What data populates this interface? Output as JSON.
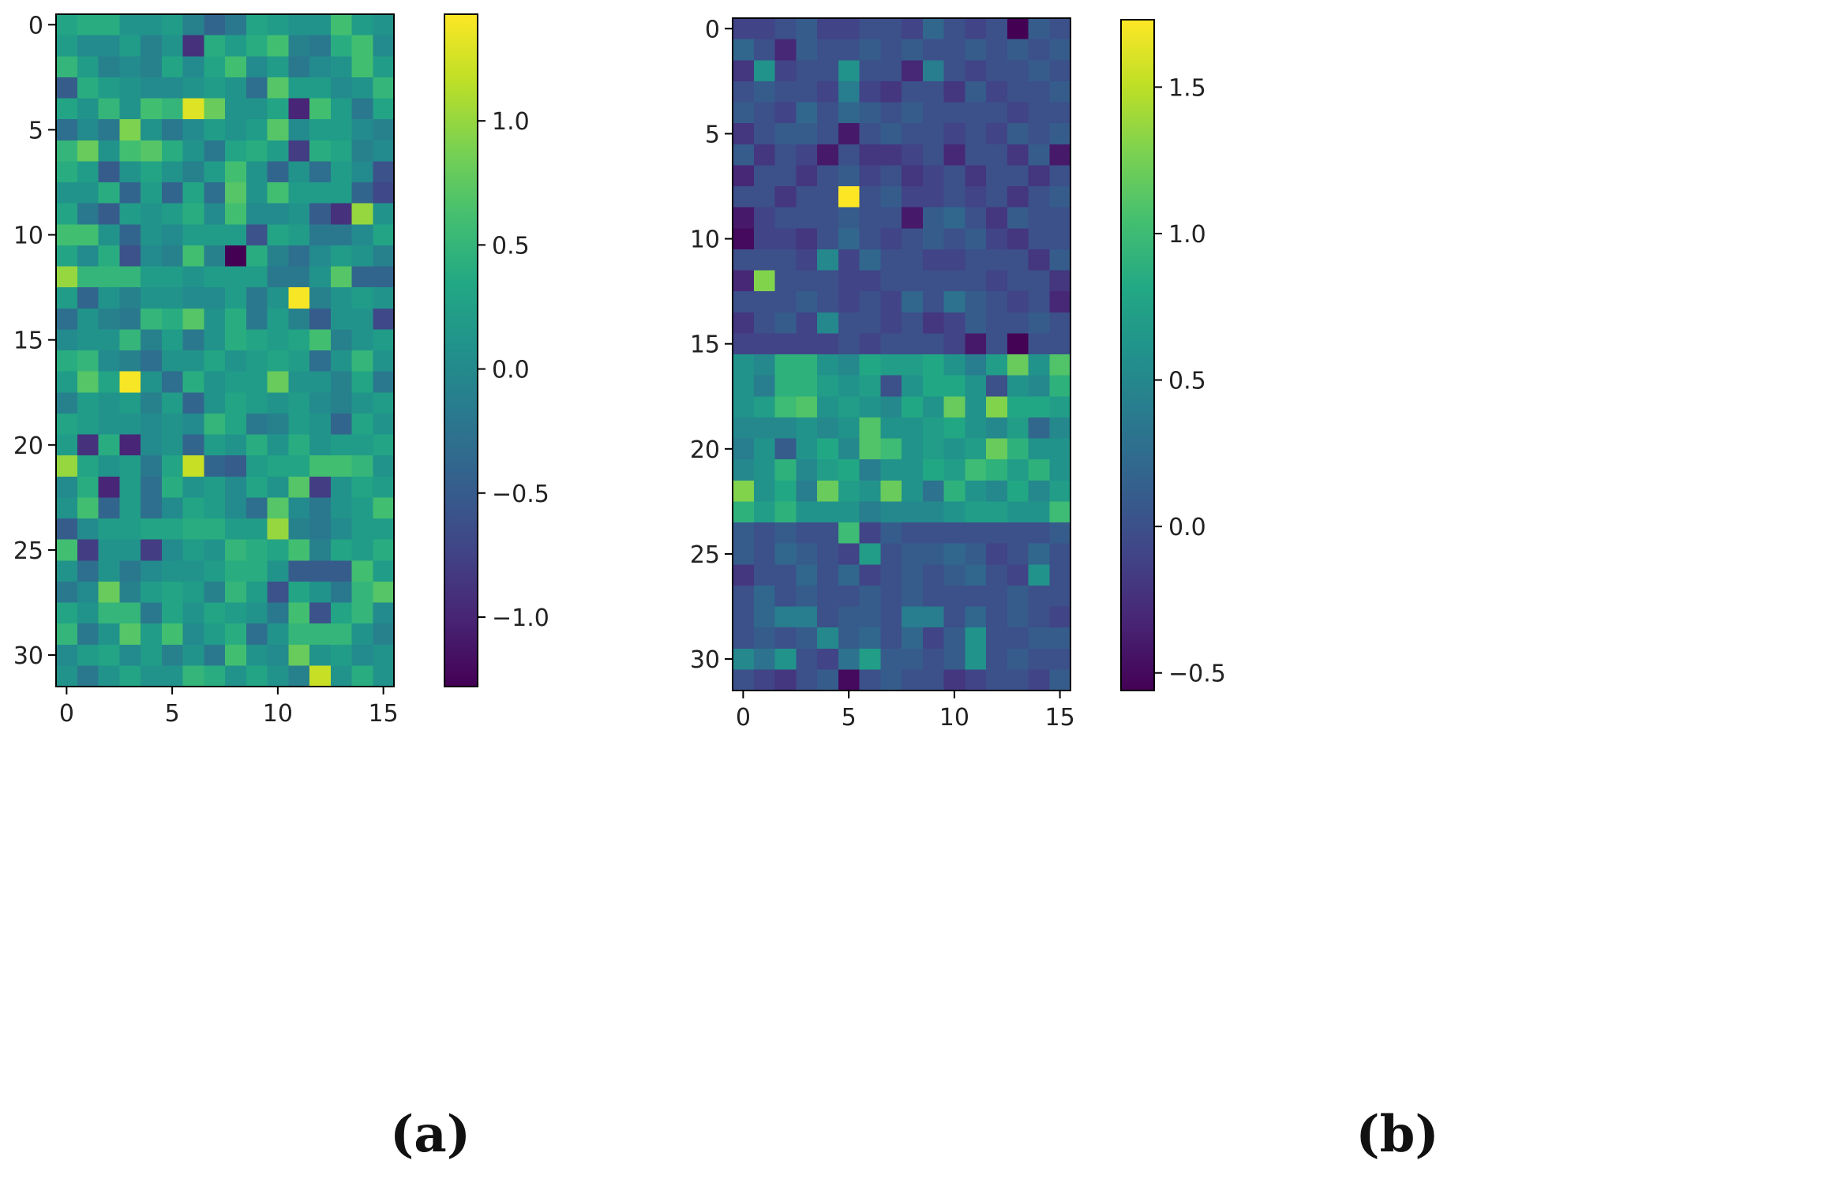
{
  "chart_data": [
    {
      "type": "heatmap",
      "panel": "a",
      "panel_label": "(a)",
      "rows": 32,
      "cols": 16,
      "colormap": "viridis",
      "vmin": -1.28,
      "vmax": 1.43,
      "xticks": [
        0,
        5,
        10,
        15
      ],
      "xtick_labels": [
        "0",
        "5",
        "10",
        "15"
      ],
      "yticks": [
        0,
        5,
        10,
        15,
        20,
        25,
        30
      ],
      "ytick_labels": [
        "0",
        "5",
        "10",
        "15",
        "20",
        "25",
        "30"
      ],
      "colorbar_ticks": [
        -1.0,
        -0.5,
        0.0,
        0.5,
        1.0
      ],
      "colorbar_tick_labels": [
        "−1.0",
        "−0.5",
        "0.0",
        "0.5",
        "1.0"
      ],
      "values": [
        [
          0.3,
          0.4,
          0.4,
          0.1,
          0.1,
          0.2,
          -0.1,
          -0.4,
          -0.2,
          0.3,
          0.2,
          0.1,
          0.1,
          0.6,
          0.2,
          0.1
        ],
        [
          0.2,
          0.0,
          0.0,
          0.2,
          -0.1,
          0.1,
          -0.9,
          0.4,
          0.2,
          0.4,
          0.6,
          -0.1,
          -0.2,
          0.4,
          0.6,
          0.0
        ],
        [
          0.5,
          0.2,
          -0.1,
          0.0,
          -0.1,
          0.3,
          0.0,
          0.3,
          0.6,
          0.0,
          0.2,
          -0.2,
          0.0,
          0.1,
          0.6,
          0.2
        ],
        [
          -0.5,
          0.4,
          0.2,
          0.1,
          0.0,
          0.0,
          0.1,
          0.2,
          0.1,
          -0.3,
          0.7,
          0.2,
          0.2,
          0.0,
          0.1,
          0.5
        ],
        [
          0.3,
          0.1,
          0.5,
          0.1,
          0.6,
          0.5,
          1.3,
          0.8,
          0.1,
          0.1,
          0.3,
          -1.0,
          0.6,
          0.2,
          -0.2,
          0.3
        ],
        [
          -0.3,
          0.0,
          -0.2,
          0.9,
          0.1,
          -0.2,
          0.0,
          0.2,
          0.1,
          0.2,
          0.7,
          0.0,
          0.2,
          0.2,
          0.0,
          -0.1
        ],
        [
          0.5,
          0.8,
          0.1,
          0.6,
          0.7,
          0.4,
          0.1,
          -0.2,
          0.3,
          0.4,
          0.2,
          -0.8,
          0.4,
          0.3,
          -0.1,
          0.0
        ],
        [
          0.4,
          0.2,
          -0.5,
          0.1,
          0.3,
          0.1,
          -0.1,
          0.2,
          0.6,
          0.1,
          -0.4,
          0.1,
          -0.3,
          0.2,
          0.0,
          -0.6
        ],
        [
          0.1,
          0.1,
          0.4,
          -0.4,
          0.2,
          -0.4,
          0.3,
          -0.3,
          0.7,
          0.1,
          0.6,
          0.2,
          0.2,
          0.2,
          -0.4,
          -0.7
        ],
        [
          0.3,
          -0.2,
          -0.5,
          0.2,
          0.1,
          0.2,
          0.4,
          0.0,
          0.6,
          0.0,
          0.0,
          0.1,
          -0.5,
          -0.9,
          1.0,
          0.1
        ],
        [
          0.6,
          0.6,
          0.1,
          -0.4,
          0.1,
          0.0,
          0.2,
          0.2,
          0.2,
          -0.6,
          0.3,
          0.2,
          -0.2,
          -0.2,
          0.0,
          0.3
        ],
        [
          0.3,
          0.0,
          0.4,
          -0.6,
          0.0,
          -0.1,
          0.6,
          -0.1,
          -1.3,
          0.4,
          -0.1,
          -0.3,
          0.0,
          0.2,
          0.1,
          -0.1
        ],
        [
          1.0,
          0.5,
          0.5,
          0.5,
          0.2,
          0.2,
          0.1,
          0.2,
          0.2,
          0.2,
          -0.2,
          -0.2,
          0.1,
          0.7,
          -0.4,
          -0.4
        ],
        [
          0.2,
          -0.4,
          0.1,
          -0.1,
          0.1,
          0.1,
          0.0,
          0.0,
          0.2,
          -0.2,
          0.1,
          1.4,
          -0.1,
          0.1,
          0.2,
          0.1
        ],
        [
          -0.3,
          0.1,
          -0.1,
          -0.2,
          0.5,
          0.4,
          0.7,
          0.1,
          0.4,
          -0.2,
          0.2,
          -0.1,
          -0.5,
          0.1,
          0.1,
          -0.7
        ],
        [
          0.0,
          0.1,
          0.1,
          0.5,
          -0.1,
          0.2,
          -0.2,
          0.1,
          0.4,
          0.3,
          0.2,
          0.3,
          0.6,
          -0.1,
          0.1,
          0.2
        ],
        [
          0.4,
          0.5,
          0.0,
          -0.1,
          -0.3,
          0.1,
          0.1,
          0.3,
          0.1,
          0.2,
          0.3,
          0.2,
          -0.3,
          0.1,
          0.5,
          0.1
        ],
        [
          0.2,
          0.7,
          0.3,
          1.4,
          0.1,
          -0.3,
          0.4,
          0.1,
          0.2,
          0.2,
          0.8,
          0.1,
          0.1,
          -0.1,
          0.3,
          -0.2
        ],
        [
          -0.1,
          0.2,
          0.1,
          0.2,
          -0.1,
          0.2,
          -0.4,
          0.1,
          0.3,
          0.2,
          0.1,
          0.2,
          0.0,
          -0.1,
          0.1,
          0.2
        ],
        [
          0.3,
          0.2,
          0.1,
          0.1,
          0.0,
          0.1,
          0.0,
          0.5,
          0.3,
          -0.2,
          -0.1,
          0.2,
          0.1,
          -0.4,
          0.3,
          0.1
        ],
        [
          0.2,
          -0.9,
          0.4,
          -1.0,
          0.0,
          0.1,
          -0.4,
          0.2,
          0.1,
          0.4,
          0.1,
          0.4,
          0.1,
          0.2,
          0.2,
          0.3
        ],
        [
          1.0,
          0.3,
          0.1,
          0.2,
          -0.2,
          0.3,
          1.2,
          -0.4,
          -0.5,
          0.2,
          0.3,
          0.3,
          0.6,
          0.6,
          0.5,
          0.1
        ],
        [
          0.0,
          0.4,
          -1.0,
          0.2,
          -0.3,
          0.4,
          0.1,
          0.2,
          0.0,
          0.3,
          0.1,
          0.7,
          -0.8,
          0.1,
          0.3,
          0.2
        ],
        [
          0.1,
          0.6,
          -0.4,
          0.2,
          -0.3,
          0.0,
          0.3,
          0.2,
          0.0,
          -0.3,
          0.7,
          0.0,
          -0.2,
          0.1,
          0.2,
          0.6
        ],
        [
          -0.5,
          0.0,
          0.2,
          0.2,
          0.3,
          0.3,
          0.4,
          0.4,
          0.2,
          0.2,
          1.0,
          -0.1,
          -0.2,
          0.0,
          0.2,
          0.2
        ],
        [
          0.6,
          -0.8,
          0.1,
          0.1,
          -0.8,
          0.0,
          0.2,
          0.1,
          0.5,
          0.4,
          0.3,
          0.6,
          -0.1,
          0.3,
          0.2,
          0.4
        ],
        [
          0.1,
          -0.3,
          0.1,
          -0.2,
          0.0,
          0.1,
          0.1,
          0.2,
          0.4,
          0.4,
          0.1,
          -0.5,
          -0.5,
          -0.5,
          0.6,
          0.2
        ],
        [
          -0.2,
          0.0,
          0.8,
          -0.1,
          0.2,
          0.3,
          0.2,
          -0.1,
          0.5,
          0.2,
          -0.6,
          0.3,
          0.1,
          -0.2,
          0.5,
          0.7
        ],
        [
          0.3,
          0.1,
          0.5,
          0.5,
          -0.2,
          0.3,
          0.1,
          0.3,
          0.2,
          0.1,
          -0.2,
          0.6,
          -0.6,
          0.3,
          0.5,
          0.0
        ],
        [
          0.5,
          -0.2,
          0.1,
          0.7,
          0.2,
          0.6,
          0.0,
          0.2,
          0.4,
          -0.3,
          0.1,
          0.5,
          0.5,
          0.5,
          0.1,
          -0.1
        ],
        [
          0.0,
          0.2,
          0.3,
          0.0,
          0.2,
          -0.1,
          0.1,
          -0.2,
          0.6,
          0.1,
          0.0,
          0.8,
          0.1,
          0.2,
          0.0,
          0.1
        ],
        [
          0.1,
          -0.2,
          0.1,
          0.3,
          0.1,
          0.1,
          0.5,
          0.4,
          0.1,
          0.3,
          0.1,
          -0.1,
          1.2,
          0.1,
          0.4,
          0.1
        ]
      ]
    },
    {
      "type": "heatmap",
      "panel": "b",
      "panel_label": "(b)",
      "rows": 32,
      "cols": 16,
      "colormap": "viridis",
      "vmin": -0.56,
      "vmax": 1.73,
      "xticks": [
        0,
        5,
        10,
        15
      ],
      "xtick_labels": [
        "0",
        "5",
        "10",
        "15"
      ],
      "yticks": [
        0,
        5,
        10,
        15,
        20,
        25,
        30
      ],
      "ytick_labels": [
        "0",
        "5",
        "10",
        "15",
        "20",
        "25",
        "30"
      ],
      "colorbar_ticks": [
        -0.5,
        0.0,
        0.5,
        1.0,
        1.5
      ],
      "colorbar_tick_labels": [
        "−0.5",
        "0.0",
        "0.5",
        "1.0",
        "1.5"
      ],
      "values": [
        [
          -0.1,
          -0.1,
          0.0,
          0.1,
          -0.1,
          -0.1,
          0.0,
          0.0,
          -0.1,
          0.2,
          0.0,
          -0.1,
          0.0,
          -0.56,
          0.1,
          0.0
        ],
        [
          0.2,
          0.0,
          -0.3,
          0.1,
          0.0,
          0.0,
          0.1,
          0.0,
          0.1,
          0.0,
          0.0,
          0.1,
          0.0,
          0.1,
          0.0,
          0.1
        ],
        [
          -0.2,
          0.6,
          -0.1,
          0.0,
          0.0,
          0.6,
          0.0,
          0.0,
          -0.3,
          0.4,
          0.0,
          -0.1,
          0.0,
          0.0,
          0.1,
          0.0
        ],
        [
          0.0,
          0.1,
          0.0,
          0.0,
          -0.1,
          0.4,
          -0.1,
          -0.2,
          0.0,
          0.0,
          -0.2,
          0.1,
          -0.1,
          0.0,
          0.0,
          0.1
        ],
        [
          0.1,
          0.0,
          -0.1,
          0.2,
          0.0,
          0.2,
          0.1,
          0.0,
          0.1,
          0.0,
          0.0,
          0.0,
          0.0,
          -0.1,
          0.0,
          0.0
        ],
        [
          -0.2,
          0.0,
          0.1,
          0.1,
          0.0,
          -0.4,
          0.0,
          0.1,
          0.0,
          0.0,
          -0.1,
          0.0,
          -0.1,
          0.1,
          0.0,
          0.1
        ],
        [
          0.1,
          -0.2,
          0.0,
          -0.1,
          -0.4,
          0.0,
          -0.2,
          -0.2,
          -0.1,
          0.0,
          -0.3,
          0.0,
          0.0,
          -0.2,
          0.1,
          -0.4
        ],
        [
          -0.3,
          0.0,
          0.0,
          -0.2,
          0.0,
          0.1,
          -0.1,
          0.0,
          -0.2,
          -0.1,
          0.0,
          -0.2,
          0.0,
          0.0,
          -0.2,
          0.0
        ],
        [
          0.0,
          0.0,
          -0.2,
          0.0,
          0.0,
          1.73,
          0.0,
          0.1,
          -0.1,
          -0.1,
          0.0,
          -0.1,
          0.0,
          -0.2,
          0.0,
          0.1
        ],
        [
          -0.4,
          -0.1,
          0.0,
          0.0,
          0.0,
          0.1,
          0.0,
          0.0,
          -0.4,
          0.1,
          0.2,
          0.0,
          -0.2,
          0.1,
          0.0,
          0.0
        ],
        [
          -0.5,
          -0.1,
          -0.1,
          -0.2,
          0.0,
          0.2,
          0.0,
          -0.1,
          0.0,
          0.1,
          0.0,
          0.1,
          -0.1,
          -0.2,
          0.0,
          0.0
        ],
        [
          0.0,
          0.0,
          0.0,
          -0.1,
          0.5,
          -0.1,
          0.2,
          0.0,
          0.0,
          -0.1,
          -0.1,
          0.0,
          0.0,
          0.0,
          -0.2,
          0.1
        ],
        [
          -0.3,
          1.3,
          0.0,
          0.0,
          0.0,
          -0.1,
          -0.1,
          0.0,
          0.0,
          0.0,
          0.0,
          0.0,
          -0.1,
          0.0,
          0.0,
          -0.2
        ],
        [
          0.0,
          0.0,
          0.0,
          0.1,
          0.0,
          -0.1,
          0.0,
          -0.1,
          0.2,
          0.0,
          0.3,
          0.1,
          0.0,
          -0.1,
          0.0,
          -0.3
        ],
        [
          -0.2,
          0.0,
          0.1,
          -0.1,
          0.5,
          0.0,
          0.0,
          -0.1,
          0.0,
          -0.2,
          -0.1,
          0.1,
          0.0,
          0.0,
          0.1,
          0.0
        ],
        [
          -0.1,
          -0.1,
          -0.1,
          -0.1,
          -0.1,
          0.0,
          -0.1,
          0.0,
          0.0,
          0.0,
          -0.1,
          -0.4,
          0.0,
          -0.55,
          0.0,
          0.0
        ],
        [
          0.6,
          0.5,
          0.9,
          0.9,
          0.6,
          0.5,
          0.8,
          0.7,
          0.7,
          0.8,
          0.6,
          0.4,
          0.7,
          1.2,
          0.6,
          1.1
        ],
        [
          0.6,
          0.4,
          0.9,
          0.9,
          0.7,
          0.6,
          0.7,
          0.0,
          0.6,
          0.8,
          0.8,
          0.6,
          0.0,
          0.6,
          0.5,
          0.9
        ],
        [
          0.6,
          0.7,
          1.0,
          1.1,
          0.6,
          0.7,
          0.6,
          0.5,
          0.8,
          0.6,
          1.2,
          0.6,
          1.3,
          0.8,
          0.8,
          0.7
        ],
        [
          0.5,
          0.5,
          0.5,
          0.6,
          0.5,
          0.6,
          1.1,
          0.6,
          0.6,
          0.7,
          0.8,
          0.6,
          0.5,
          0.7,
          0.2,
          0.5
        ],
        [
          0.4,
          0.6,
          0.1,
          0.6,
          0.8,
          0.5,
          1.1,
          1.0,
          0.6,
          0.7,
          0.6,
          0.7,
          1.2,
          0.9,
          0.6,
          0.6
        ],
        [
          0.5,
          0.6,
          0.9,
          0.5,
          0.7,
          0.8,
          0.4,
          0.6,
          0.6,
          0.8,
          0.7,
          1.0,
          0.9,
          0.7,
          0.9,
          0.6
        ],
        [
          1.3,
          0.6,
          0.8,
          0.4,
          1.2,
          0.7,
          0.6,
          1.2,
          0.6,
          0.3,
          0.9,
          0.6,
          0.5,
          0.8,
          0.5,
          0.7
        ],
        [
          0.9,
          0.7,
          0.9,
          0.6,
          0.6,
          0.6,
          0.4,
          0.5,
          0.5,
          0.5,
          0.6,
          0.7,
          0.7,
          0.6,
          0.6,
          1.0
        ],
        [
          0.1,
          0.0,
          0.1,
          0.0,
          0.0,
          1.0,
          -0.1,
          0.1,
          0.0,
          0.0,
          0.0,
          0.0,
          0.0,
          0.0,
          0.0,
          0.1
        ],
        [
          0.1,
          0.0,
          0.2,
          0.1,
          0.0,
          -0.1,
          0.7,
          0.0,
          0.1,
          0.1,
          0.2,
          0.1,
          -0.1,
          0.0,
          0.2,
          0.0
        ],
        [
          -0.2,
          0.0,
          0.0,
          0.2,
          0.0,
          0.2,
          -0.1,
          0.0,
          0.1,
          0.0,
          0.1,
          0.2,
          0.0,
          -0.1,
          0.6,
          0.0
        ],
        [
          0.0,
          0.2,
          0.0,
          0.1,
          0.0,
          0.0,
          0.1,
          0.0,
          0.1,
          0.0,
          0.0,
          0.0,
          0.0,
          0.1,
          0.0,
          0.0
        ],
        [
          0.0,
          0.2,
          0.4,
          0.4,
          0.0,
          0.1,
          0.1,
          0.0,
          0.4,
          0.4,
          0.0,
          0.2,
          0.0,
          0.1,
          0.0,
          -0.1
        ],
        [
          0.0,
          0.1,
          0.0,
          0.1,
          0.5,
          0.1,
          0.2,
          0.0,
          0.2,
          -0.1,
          0.1,
          0.6,
          0.0,
          0.0,
          0.1,
          0.1
        ],
        [
          0.5,
          0.3,
          0.6,
          0.0,
          -0.1,
          0.3,
          0.7,
          0.1,
          0.1,
          0.0,
          0.1,
          0.6,
          0.0,
          0.1,
          0.0,
          0.0
        ],
        [
          0.0,
          -0.1,
          -0.2,
          0.0,
          0.1,
          -0.5,
          0.0,
          0.1,
          0.0,
          0.0,
          -0.2,
          -0.1,
          0.0,
          0.0,
          -0.1,
          0.1
        ]
      ]
    }
  ]
}
